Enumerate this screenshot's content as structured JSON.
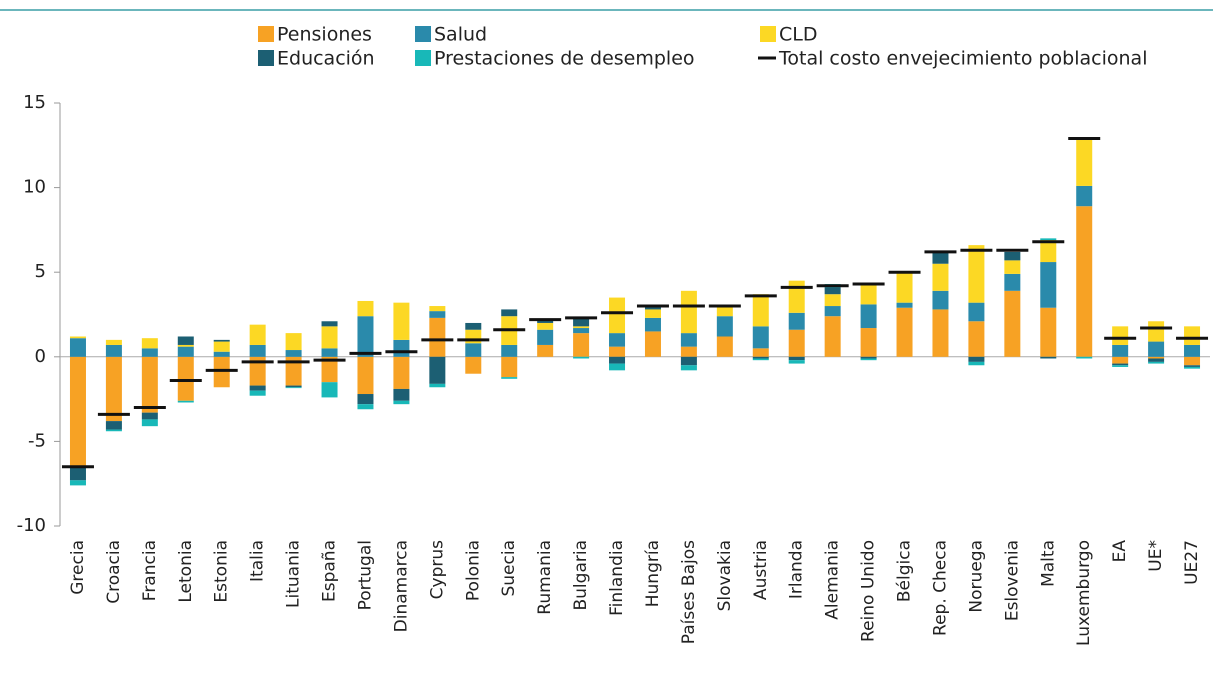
{
  "chart_data": {
    "type": "bar",
    "stacked": true,
    "categories": [
      "Grecia",
      "Croacia",
      "Francia",
      "Letonia",
      "Estonia",
      "Italia",
      "Lituania",
      "España",
      "Portugal",
      "Dinamarca",
      "Cyprus",
      "Polonia",
      "Suecia",
      "Rumania",
      "Bulgaria",
      "Finlandia",
      "Hungría",
      "Países Bajos",
      "Slovakia",
      "Austria",
      "Irlanda",
      "Alemania",
      "Reino Unido",
      "Bélgica",
      "Rep. Checa",
      "Noruega",
      "Eslovenia",
      "Malta",
      "Luxemburgo",
      "EA",
      "UE*",
      "UE27"
    ],
    "series": [
      {
        "name": "Pensiones",
        "color": "#f7a224",
        "values": [
          -6.5,
          -3.8,
          -3.3,
          -2.6,
          -1.8,
          -1.7,
          -1.7,
          -1.5,
          -2.2,
          -1.9,
          2.3,
          -1.0,
          -1.2,
          0.7,
          1.4,
          0.6,
          1.5,
          0.6,
          1.2,
          0.5,
          1.6,
          2.4,
          1.7,
          2.9,
          2.8,
          2.1,
          3.9,
          2.9,
          8.9,
          -0.4,
          -0.1,
          -0.5
        ]
      },
      {
        "name": "Salud",
        "color": "#2a8aab",
        "values": [
          1.1,
          0.7,
          0.5,
          0.6,
          0.3,
          0.7,
          0.4,
          0.5,
          2.4,
          1.0,
          0.4,
          0.8,
          0.7,
          0.9,
          0.3,
          0.8,
          0.8,
          0.8,
          1.2,
          1.3,
          1.0,
          0.6,
          1.4,
          0.3,
          1.1,
          1.1,
          1.0,
          2.7,
          1.2,
          0.7,
          0.9,
          0.7
        ]
      },
      {
        "name": "CLD",
        "color": "#fcd824",
        "values": [
          0.1,
          0.3,
          0.6,
          0.1,
          0.6,
          1.2,
          1.0,
          1.3,
          0.9,
          2.2,
          0.3,
          0.8,
          1.7,
          0.4,
          0.1,
          2.1,
          0.5,
          2.5,
          0.6,
          1.9,
          1.9,
          0.7,
          1.2,
          1.8,
          1.6,
          3.4,
          0.8,
          1.3,
          2.8,
          1.1,
          1.2,
          1.1
        ]
      },
      {
        "name": "Educación",
        "color": "#1c5f73",
        "values": [
          -0.8,
          -0.5,
          -0.4,
          0.5,
          0.1,
          -0.3,
          -0.1,
          0.3,
          -0.6,
          -0.7,
          -1.6,
          0.4,
          0.4,
          0.2,
          0.5,
          -0.4,
          0.2,
          -0.5,
          0,
          -0.1,
          -0.2,
          0.4,
          -0.1,
          0,
          0.7,
          -0.3,
          0.5,
          -0.1,
          0,
          -0.1,
          -0.2,
          -0.1
        ]
      },
      {
        "name": "Prestaciones de desempleo",
        "color": "#18b8b8",
        "values": [
          -0.3,
          -0.1,
          -0.4,
          -0.1,
          0,
          -0.3,
          -0.05,
          -0.9,
          -0.3,
          -0.2,
          -0.2,
          0,
          -0.1,
          0,
          -0.1,
          -0.4,
          0,
          -0.3,
          0,
          -0.1,
          -0.2,
          0.2,
          -0.1,
          0,
          0,
          -0.2,
          0,
          0.1,
          -0.1,
          -0.1,
          -0.1,
          -0.1
        ]
      },
      {
        "name": "Total costo envejecimiento poblacional",
        "color": "#111111",
        "type": "marker",
        "values": [
          -6.5,
          -3.4,
          -3.0,
          -1.4,
          -0.8,
          -0.3,
          -0.3,
          -0.2,
          0.2,
          0.3,
          1.0,
          1.0,
          1.6,
          2.2,
          2.3,
          2.6,
          3.0,
          3.0,
          3.0,
          3.6,
          4.1,
          4.2,
          4.3,
          5.0,
          6.2,
          6.3,
          6.3,
          6.8,
          12.9,
          1.1,
          1.7,
          1.1
        ]
      }
    ],
    "ylim": [
      -10,
      15
    ],
    "yticks": [
      -10,
      -5,
      0,
      5,
      10,
      15
    ]
  }
}
